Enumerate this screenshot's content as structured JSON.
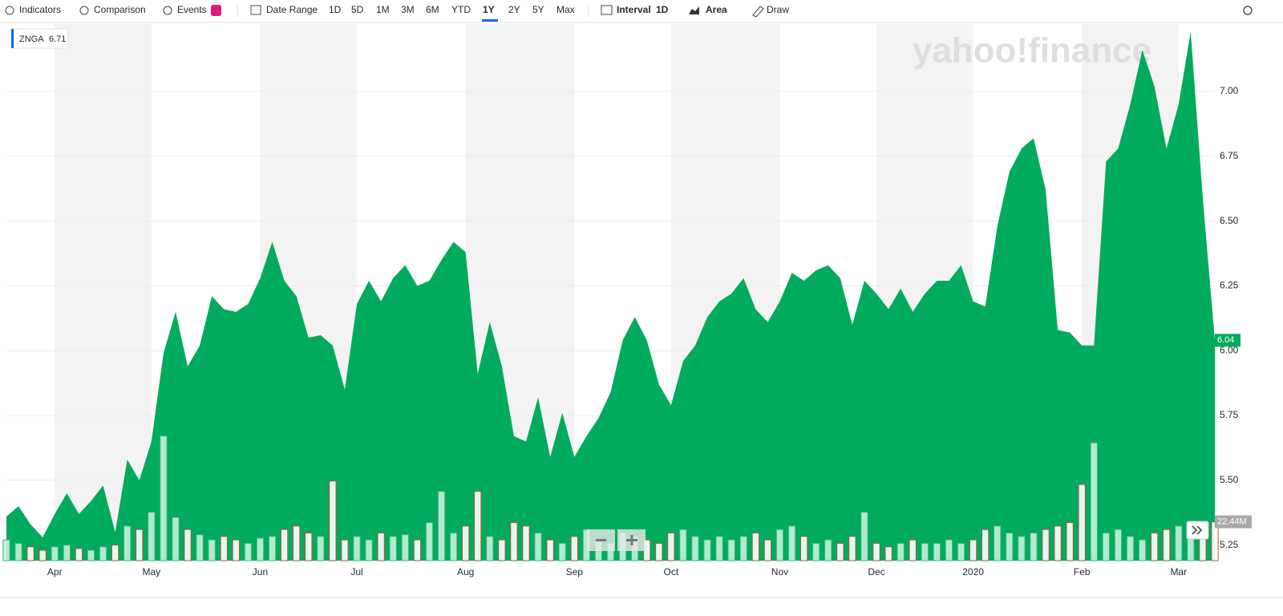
{
  "toolbar": {
    "buttons": [
      "Indicators",
      "Comparison",
      "Events"
    ],
    "date_range": "Date Range",
    "ranges": [
      "1D",
      "5D",
      "1M",
      "3M",
      "6M",
      "YTD",
      "1Y",
      "2Y",
      "5Y",
      "Max"
    ],
    "active_range_index": 6,
    "interval": "Interval",
    "interval_value": "1D",
    "chart_style": "Area",
    "draw": "Draw"
  },
  "chart_data": {
    "type": "area",
    "watermark": "yahoo!finance",
    "quote_label": "6.71",
    "current_price_label": "6.04",
    "current_volume_label": "22.44M",
    "categories": [
      null,
      null,
      null,
      null,
      "Apr",
      null,
      null,
      null,
      null,
      null,
      null,
      null,
      "May",
      null,
      null,
      null,
      null,
      null,
      null,
      null,
      null,
      "Jun",
      null,
      null,
      null,
      null,
      null,
      null,
      null,
      "Jul",
      null,
      null,
      null,
      null,
      null,
      null,
      null,
      null,
      "Aug",
      null,
      null,
      null,
      null,
      null,
      null,
      null,
      null,
      "Sep",
      null,
      null,
      null,
      null,
      null,
      null,
      null,
      "Oct",
      null,
      null,
      null,
      null,
      null,
      null,
      null,
      null,
      "Nov",
      null,
      null,
      null,
      null,
      null,
      null,
      null,
      "Dec",
      null,
      null,
      null,
      null,
      null,
      null,
      null,
      "2020",
      null,
      null,
      null,
      null,
      null,
      null,
      null,
      null,
      "Feb",
      null,
      null,
      null,
      null,
      null,
      null,
      null,
      "Mar",
      null,
      null,
      null
    ],
    "series": [
      {
        "name": "ZNGA",
        "color": "#00ab5e",
        "values": [
          5.36,
          5.4,
          5.33,
          5.28,
          5.37,
          5.45,
          5.37,
          5.42,
          5.48,
          5.3,
          5.58,
          5.5,
          5.65,
          5.99,
          6.15,
          5.94,
          6.02,
          6.21,
          6.16,
          6.15,
          6.18,
          6.28,
          6.42,
          6.27,
          6.21,
          6.05,
          6.06,
          6.02,
          5.85,
          6.18,
          6.27,
          6.19,
          6.28,
          6.33,
          6.25,
          6.27,
          6.35,
          6.42,
          6.38,
          5.91,
          6.11,
          5.94,
          5.67,
          5.65,
          5.82,
          5.59,
          5.76,
          5.59,
          5.67,
          5.74,
          5.84,
          6.04,
          6.13,
          6.04,
          5.87,
          5.79,
          5.96,
          6.02,
          6.13,
          6.19,
          6.22,
          6.28,
          6.16,
          6.11,
          6.19,
          6.3,
          6.27,
          6.31,
          6.33,
          6.28,
          6.1,
          6.27,
          6.22,
          6.16,
          6.24,
          6.15,
          6.22,
          6.27,
          6.27,
          6.33,
          6.19,
          6.17,
          6.48,
          6.69,
          6.78,
          6.82,
          6.62,
          6.08,
          6.07,
          6.02,
          6.02,
          6.73,
          6.78,
          6.95,
          7.16,
          7.02,
          6.78,
          6.95,
          7.23,
          6.59,
          6.04
        ]
      },
      {
        "name": "Volume",
        "axis": "y2",
        "up_color": "#3cb878",
        "down_color": "#b5543f",
        "values": [
          12,
          10,
          8,
          6,
          8,
          9,
          7,
          6,
          8,
          9,
          20,
          18,
          28,
          72,
          25,
          18,
          15,
          12,
          14,
          12,
          10,
          13,
          14,
          18,
          20,
          16,
          14,
          46,
          12,
          14,
          12,
          16,
          14,
          15,
          12,
          22,
          40,
          16,
          20,
          40,
          14,
          12,
          22,
          20,
          16,
          12,
          10,
          14,
          18,
          12,
          10,
          16,
          14,
          12,
          10,
          16,
          18,
          14,
          12,
          14,
          12,
          14,
          16,
          12,
          18,
          20,
          14,
          10,
          12,
          10,
          14,
          28,
          10,
          8,
          10,
          12,
          10,
          10,
          12,
          10,
          12,
          18,
          20,
          16,
          14,
          16,
          18,
          20,
          22,
          44,
          68,
          16,
          18,
          14,
          12,
          16,
          18,
          20,
          16,
          14,
          22.44
        ]
      }
    ],
    "ylim": [
      5.19,
      7.26
    ],
    "yticks": [
      {
        "value": 5.25,
        "label": "5.25"
      },
      {
        "value": 5.5,
        "label": "5.50"
      },
      {
        "value": 5.75,
        "label": "5.75"
      },
      {
        "value": 6,
        "label": "6.00"
      },
      {
        "value": 6.25,
        "label": "6.25"
      },
      {
        "value": 6.5,
        "label": "6.50"
      },
      {
        "value": 6.75,
        "label": "6.75"
      },
      {
        "value": 7,
        "label": "7.00"
      }
    ],
    "y2lim": [
      0,
      310
    ],
    "grid": true,
    "shaded_months": true
  }
}
